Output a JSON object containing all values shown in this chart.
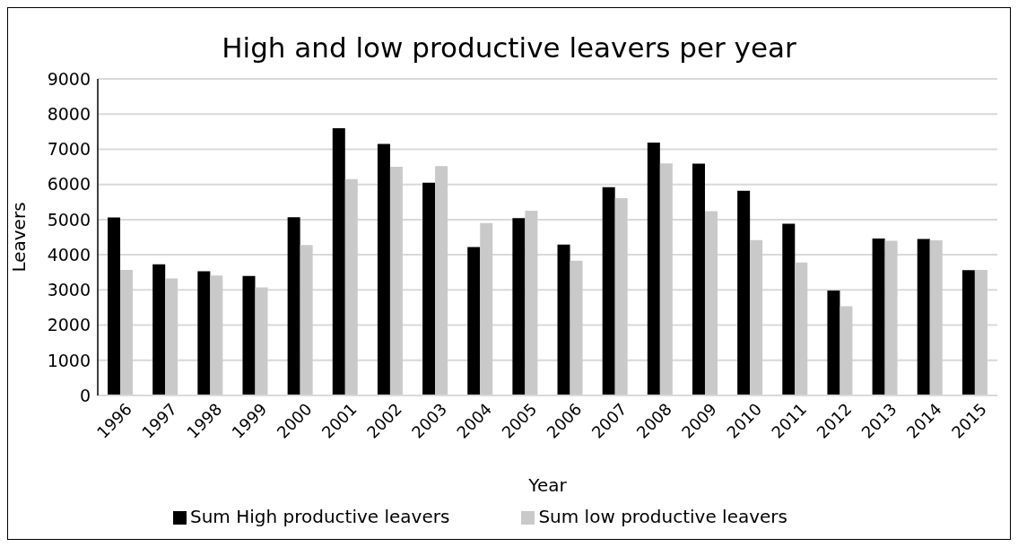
{
  "chart_data": {
    "type": "bar",
    "title": "High and low productive leavers per year",
    "xlabel": "Year",
    "ylabel": "Leavers",
    "categories": [
      "1996",
      "1997",
      "1998",
      "1999",
      "2000",
      "2001",
      "2002",
      "2003",
      "2004",
      "2005",
      "2006",
      "2007",
      "2008",
      "2009",
      "2010",
      "2011",
      "2012",
      "2013",
      "2014",
      "2015"
    ],
    "series": [
      {
        "name": "Sum High productive leavers",
        "color": "#000000",
        "values": [
          5060,
          3730,
          3530,
          3400,
          5070,
          7600,
          7150,
          6050,
          4220,
          5040,
          4290,
          5920,
          7190,
          6590,
          5820,
          4880,
          2980,
          4460,
          4450,
          3560
        ]
      },
      {
        "name": "Sum low productive leavers",
        "color": "#c9c9c9",
        "values": [
          3570,
          3330,
          3410,
          3070,
          4280,
          6150,
          6500,
          6520,
          4900,
          5250,
          3830,
          5610,
          6600,
          5240,
          4420,
          3780,
          2540,
          4400,
          4410,
          3570
        ]
      }
    ],
    "ylim": [
      0,
      9000
    ],
    "yticks": [
      0,
      1000,
      2000,
      3000,
      4000,
      5000,
      6000,
      7000,
      8000,
      9000
    ],
    "grid": "y",
    "legend": "bottom"
  }
}
